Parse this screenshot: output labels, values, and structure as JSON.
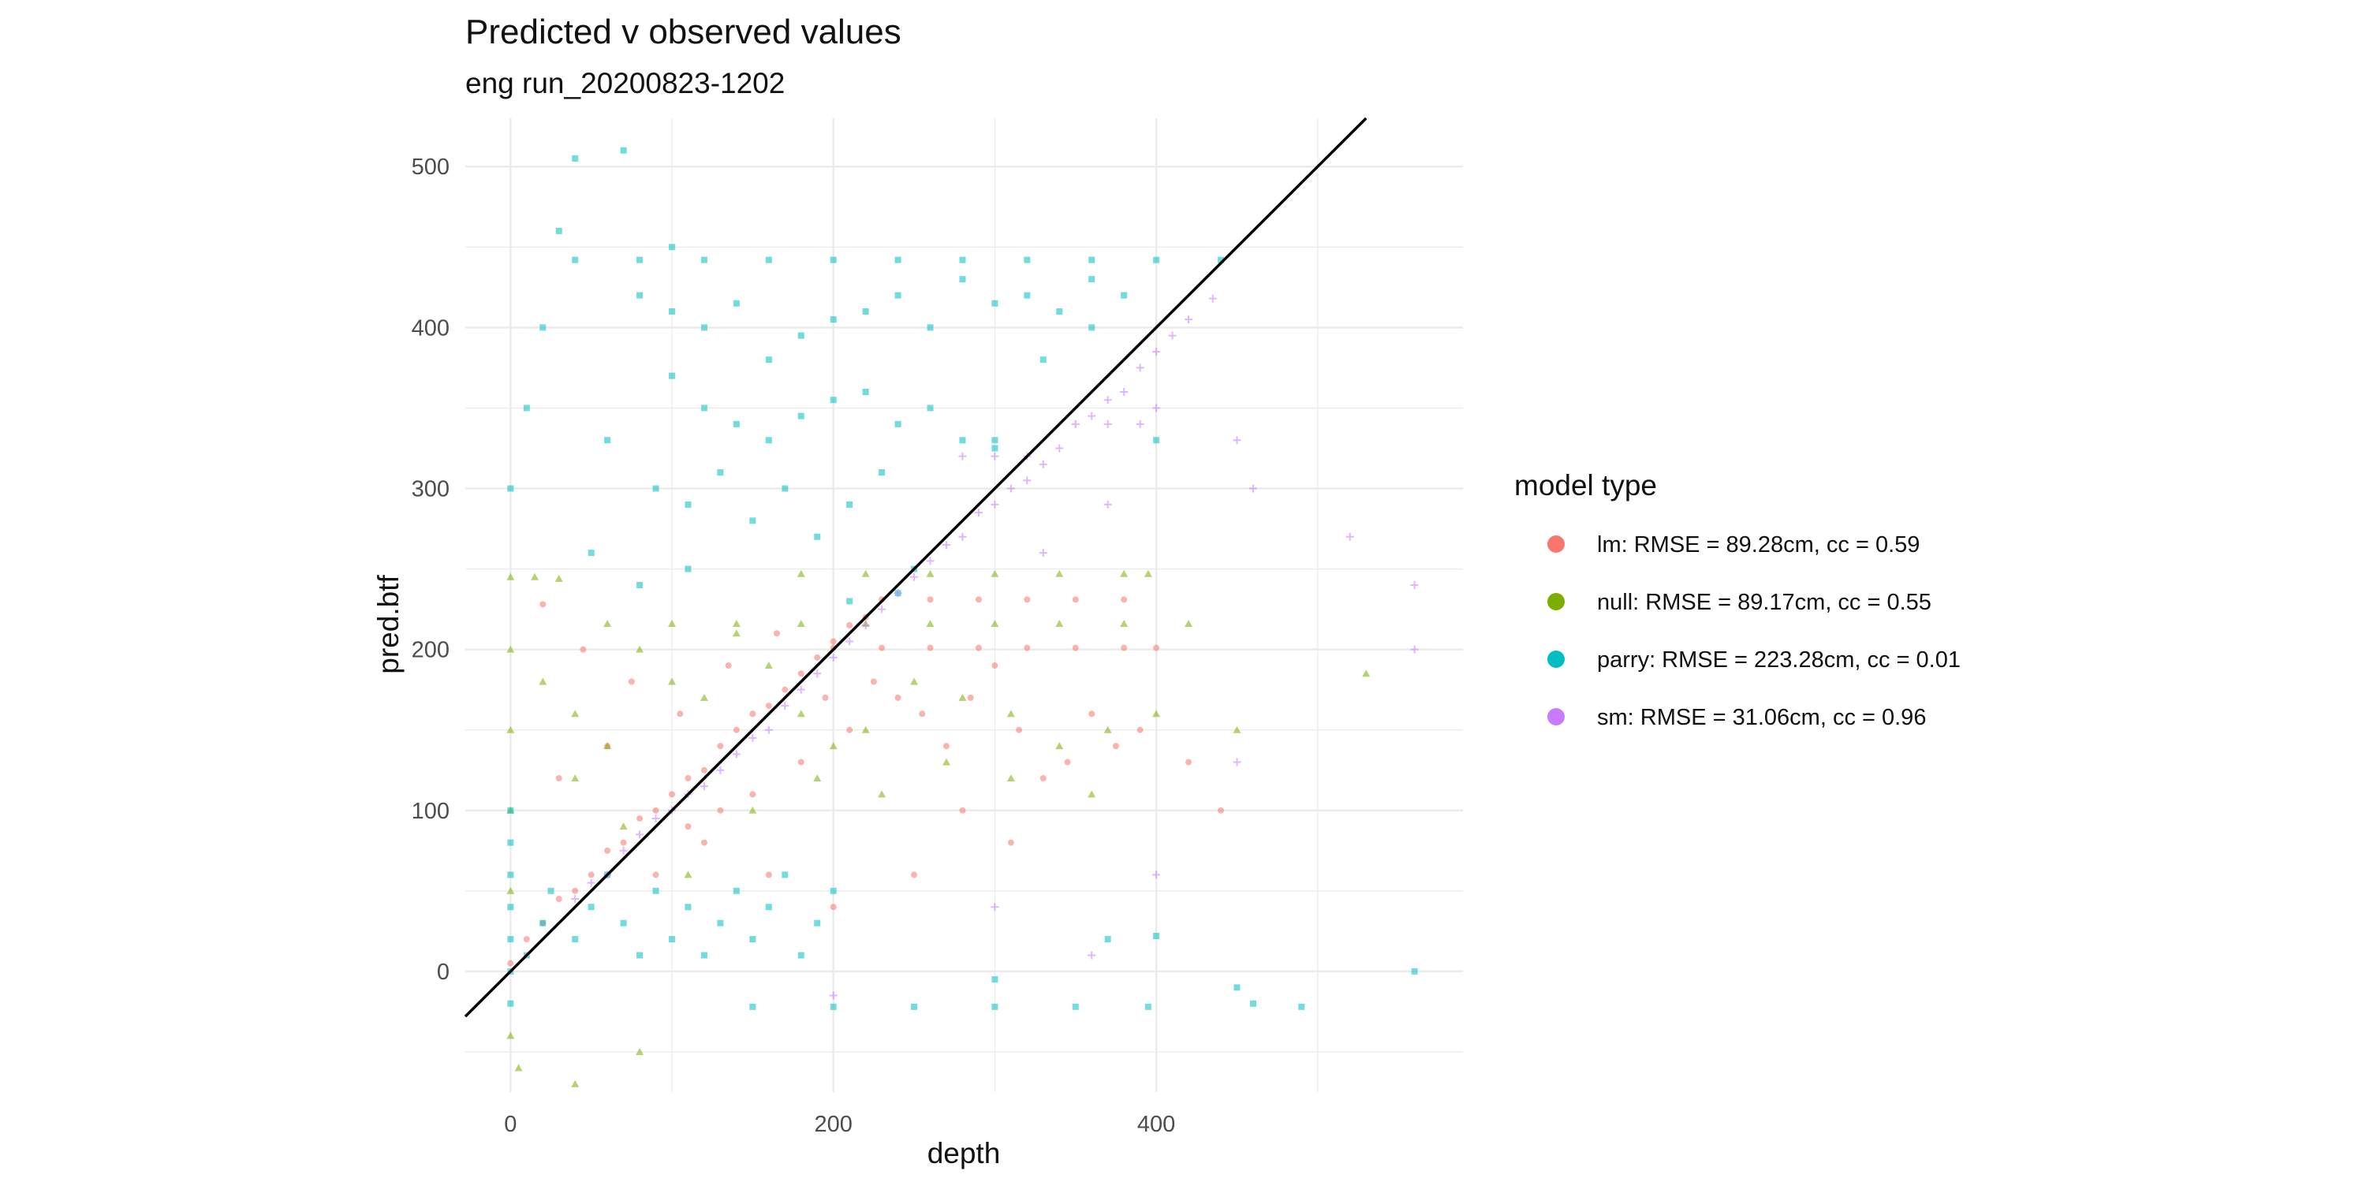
{
  "chart_data": {
    "type": "scatter",
    "title": "Predicted v observed values",
    "subtitle": "eng run_20200823-1202",
    "xlabel": "depth",
    "ylabel": "pred.btf",
    "xlim": [
      -28,
      590
    ],
    "ylim": [
      -75,
      530
    ],
    "x_ticks": [
      0,
      200,
      400
    ],
    "y_ticks": [
      0,
      100,
      200,
      300,
      400,
      500
    ],
    "grid": true,
    "legend_position": "right",
    "legend": {
      "title": "model type",
      "entries": [
        {
          "label": "lm: RMSE = 89.28cm, cc = 0.59",
          "color": "#F8766D"
        },
        {
          "label": "null: RMSE = 89.17cm, cc = 0.55",
          "color": "#7CAE00"
        },
        {
          "label": "parry: RMSE = 223.28cm, cc = 0.01",
          "color": "#00BFC4"
        },
        {
          "label": "sm: RMSE = 31.06cm, cc = 0.96",
          "color": "#C77CFF"
        }
      ]
    },
    "reference_line": {
      "slope": 1,
      "intercept": 0,
      "color": "#000000"
    },
    "series": [
      {
        "name": "lm",
        "color": "#F8766D",
        "marker": "circle",
        "points": [
          [
            0,
            5
          ],
          [
            10,
            20
          ],
          [
            20,
            30
          ],
          [
            30,
            45
          ],
          [
            40,
            50
          ],
          [
            50,
            60
          ],
          [
            60,
            75
          ],
          [
            70,
            80
          ],
          [
            80,
            95
          ],
          [
            90,
            100
          ],
          [
            100,
            110
          ],
          [
            110,
            120
          ],
          [
            120,
            125
          ],
          [
            130,
            140
          ],
          [
            140,
            150
          ],
          [
            150,
            160
          ],
          [
            160,
            165
          ],
          [
            170,
            175
          ],
          [
            180,
            185
          ],
          [
            190,
            195
          ],
          [
            200,
            205
          ],
          [
            210,
            215
          ],
          [
            220,
            220
          ],
          [
            30,
            120
          ],
          [
            60,
            140
          ],
          [
            90,
            60
          ],
          [
            120,
            80
          ],
          [
            150,
            110
          ],
          [
            180,
            130
          ],
          [
            210,
            150
          ],
          [
            240,
            170
          ],
          [
            270,
            140
          ],
          [
            300,
            190
          ],
          [
            330,
            120
          ],
          [
            360,
            160
          ],
          [
            390,
            150
          ],
          [
            45,
            200
          ],
          [
            75,
            180
          ],
          [
            105,
            160
          ],
          [
            135,
            190
          ],
          [
            165,
            210
          ],
          [
            195,
            170
          ],
          [
            225,
            180
          ],
          [
            255,
            160
          ],
          [
            285,
            170
          ],
          [
            315,
            150
          ],
          [
            345,
            130
          ],
          [
            375,
            140
          ],
          [
            20,
            228
          ],
          [
            200,
            201
          ],
          [
            230,
            201
          ],
          [
            260,
            201
          ],
          [
            290,
            201
          ],
          [
            320,
            201
          ],
          [
            350,
            201
          ],
          [
            380,
            201
          ],
          [
            400,
            201
          ],
          [
            230,
            231
          ],
          [
            260,
            231
          ],
          [
            290,
            231
          ],
          [
            320,
            231
          ],
          [
            350,
            231
          ],
          [
            380,
            231
          ],
          [
            110,
            90
          ],
          [
            130,
            100
          ],
          [
            160,
            60
          ],
          [
            200,
            40
          ],
          [
            250,
            60
          ],
          [
            280,
            100
          ],
          [
            310,
            80
          ],
          [
            420,
            130
          ],
          [
            440,
            100
          ]
        ]
      },
      {
        "name": "null",
        "color": "#7CAE00",
        "marker": "triangle",
        "points": [
          [
            0,
            245
          ],
          [
            0,
            200
          ],
          [
            0,
            150
          ],
          [
            0,
            100
          ],
          [
            0,
            50
          ],
          [
            0,
            -40
          ],
          [
            5,
            -60
          ],
          [
            40,
            -70
          ],
          [
            80,
            -50
          ],
          [
            20,
            180
          ],
          [
            40,
            160
          ],
          [
            60,
            140
          ],
          [
            80,
            200
          ],
          [
            100,
            180
          ],
          [
            120,
            170
          ],
          [
            140,
            210
          ],
          [
            160,
            190
          ],
          [
            180,
            160
          ],
          [
            200,
            140
          ],
          [
            220,
            150
          ],
          [
            250,
            180
          ],
          [
            280,
            170
          ],
          [
            310,
            160
          ],
          [
            340,
            140
          ],
          [
            370,
            150
          ],
          [
            400,
            160
          ],
          [
            15,
            245
          ],
          [
            30,
            244
          ],
          [
            60,
            216
          ],
          [
            100,
            216
          ],
          [
            140,
            216
          ],
          [
            180,
            216
          ],
          [
            220,
            216
          ],
          [
            260,
            216
          ],
          [
            300,
            216
          ],
          [
            340,
            216
          ],
          [
            380,
            216
          ],
          [
            420,
            216
          ],
          [
            180,
            247
          ],
          [
            220,
            247
          ],
          [
            260,
            247
          ],
          [
            300,
            247
          ],
          [
            340,
            247
          ],
          [
            380,
            247
          ],
          [
            395,
            247
          ],
          [
            40,
            120
          ],
          [
            70,
            90
          ],
          [
            110,
            60
          ],
          [
            150,
            100
          ],
          [
            190,
            120
          ],
          [
            230,
            110
          ],
          [
            270,
            130
          ],
          [
            310,
            120
          ],
          [
            360,
            110
          ],
          [
            450,
            150
          ],
          [
            530,
            185
          ]
        ]
      },
      {
        "name": "parry",
        "color": "#00BFC4",
        "marker": "square",
        "points": [
          [
            0,
            0
          ],
          [
            0,
            20
          ],
          [
            0,
            40
          ],
          [
            0,
            60
          ],
          [
            0,
            80
          ],
          [
            0,
            100
          ],
          [
            0,
            -20
          ],
          [
            10,
            10
          ],
          [
            20,
            30
          ],
          [
            25,
            50
          ],
          [
            40,
            20
          ],
          [
            50,
            40
          ],
          [
            60,
            60
          ],
          [
            70,
            30
          ],
          [
            80,
            10
          ],
          [
            90,
            50
          ],
          [
            100,
            20
          ],
          [
            110,
            40
          ],
          [
            120,
            10
          ],
          [
            130,
            30
          ],
          [
            140,
            50
          ],
          [
            150,
            20
          ],
          [
            160,
            40
          ],
          [
            170,
            60
          ],
          [
            180,
            10
          ],
          [
            190,
            30
          ],
          [
            200,
            50
          ],
          [
            150,
            -22
          ],
          [
            200,
            -22
          ],
          [
            250,
            -22
          ],
          [
            300,
            -22
          ],
          [
            350,
            -22
          ],
          [
            395,
            -22
          ],
          [
            40,
            442
          ],
          [
            80,
            442
          ],
          [
            120,
            442
          ],
          [
            160,
            442
          ],
          [
            200,
            442
          ],
          [
            240,
            442
          ],
          [
            280,
            442
          ],
          [
            320,
            442
          ],
          [
            360,
            442
          ],
          [
            400,
            442
          ],
          [
            440,
            442
          ],
          [
            80,
            420
          ],
          [
            100,
            410
          ],
          [
            120,
            400
          ],
          [
            140,
            415
          ],
          [
            160,
            380
          ],
          [
            180,
            395
          ],
          [
            200,
            405
          ],
          [
            220,
            410
          ],
          [
            240,
            420
          ],
          [
            260,
            400
          ],
          [
            280,
            430
          ],
          [
            300,
            415
          ],
          [
            320,
            420
          ],
          [
            340,
            410
          ],
          [
            360,
            430
          ],
          [
            380,
            420
          ],
          [
            100,
            370
          ],
          [
            120,
            350
          ],
          [
            140,
            340
          ],
          [
            160,
            330
          ],
          [
            180,
            345
          ],
          [
            200,
            355
          ],
          [
            220,
            360
          ],
          [
            240,
            340
          ],
          [
            260,
            350
          ],
          [
            280,
            330
          ],
          [
            300,
            325
          ],
          [
            330,
            380
          ],
          [
            360,
            400
          ],
          [
            90,
            300
          ],
          [
            110,
            290
          ],
          [
            130,
            310
          ],
          [
            150,
            280
          ],
          [
            170,
            300
          ],
          [
            190,
            270
          ],
          [
            210,
            290
          ],
          [
            230,
            310
          ],
          [
            60,
            330
          ],
          [
            50,
            260
          ],
          [
            80,
            240
          ],
          [
            110,
            250
          ],
          [
            0,
            300
          ],
          [
            10,
            350
          ],
          [
            20,
            400
          ],
          [
            30,
            460
          ],
          [
            40,
            505
          ],
          [
            70,
            510
          ],
          [
            100,
            450
          ],
          [
            210,
            230
          ],
          [
            240,
            235
          ],
          [
            250,
            250
          ],
          [
            450,
            -10
          ],
          [
            460,
            -20
          ],
          [
            490,
            -22
          ],
          [
            560,
            0
          ],
          [
            370,
            20
          ],
          [
            400,
            22
          ],
          [
            300,
            -5
          ],
          [
            300,
            330
          ],
          [
            400,
            330
          ]
        ]
      },
      {
        "name": "sm",
        "color": "#C77CFF",
        "marker": "plus",
        "points": [
          [
            40,
            45
          ],
          [
            60,
            60
          ],
          [
            80,
            85
          ],
          [
            100,
            100
          ],
          [
            120,
            115
          ],
          [
            140,
            135
          ],
          [
            160,
            150
          ],
          [
            180,
            175
          ],
          [
            200,
            195
          ],
          [
            220,
            215
          ],
          [
            240,
            235
          ],
          [
            260,
            255
          ],
          [
            280,
            270
          ],
          [
            300,
            290
          ],
          [
            320,
            305
          ],
          [
            340,
            325
          ],
          [
            360,
            345
          ],
          [
            380,
            360
          ],
          [
            400,
            385
          ],
          [
            420,
            405
          ],
          [
            435,
            418
          ],
          [
            50,
            55
          ],
          [
            70,
            75
          ],
          [
            90,
            95
          ],
          [
            110,
            110
          ],
          [
            130,
            125
          ],
          [
            150,
            145
          ],
          [
            170,
            165
          ],
          [
            190,
            185
          ],
          [
            210,
            205
          ],
          [
            230,
            225
          ],
          [
            250,
            245
          ],
          [
            270,
            265
          ],
          [
            290,
            285
          ],
          [
            310,
            300
          ],
          [
            330,
            315
          ],
          [
            350,
            340
          ],
          [
            370,
            355
          ],
          [
            390,
            375
          ],
          [
            410,
            395
          ],
          [
            280,
            320
          ],
          [
            300,
            320
          ],
          [
            320,
            320
          ],
          [
            350,
            340
          ],
          [
            370,
            340
          ],
          [
            390,
            340
          ],
          [
            400,
            350
          ],
          [
            450,
            330
          ],
          [
            460,
            300
          ],
          [
            520,
            270
          ],
          [
            560,
            240
          ],
          [
            560,
            200
          ],
          [
            450,
            130
          ],
          [
            400,
            60
          ],
          [
            360,
            10
          ],
          [
            300,
            40
          ],
          [
            200,
            -15
          ],
          [
            330,
            260
          ],
          [
            370,
            290
          ]
        ]
      }
    ]
  }
}
